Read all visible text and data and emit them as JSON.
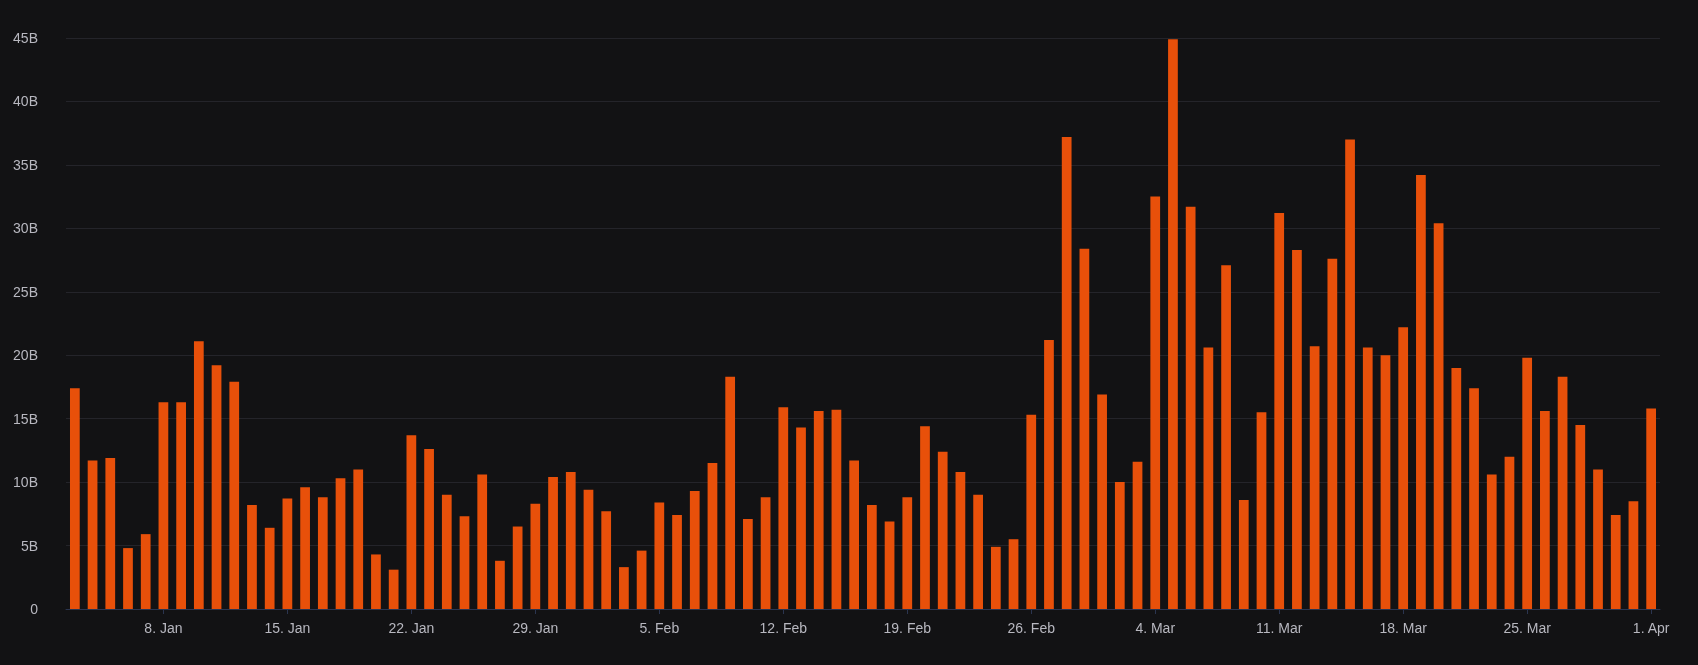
{
  "chart_data": {
    "type": "bar",
    "categories": [
      null,
      null,
      null,
      null,
      null,
      "8. Jan",
      null,
      null,
      null,
      null,
      null,
      null,
      "15. Jan",
      null,
      null,
      null,
      null,
      null,
      null,
      "22. Jan",
      null,
      null,
      null,
      null,
      null,
      null,
      "29. Jan",
      null,
      null,
      null,
      null,
      null,
      null,
      "5. Feb",
      null,
      null,
      null,
      null,
      null,
      null,
      "12. Feb",
      null,
      null,
      null,
      null,
      null,
      null,
      "19. Feb",
      null,
      null,
      null,
      null,
      null,
      null,
      "26. Feb",
      null,
      null,
      null,
      null,
      null,
      null,
      "4. Mar",
      null,
      null,
      null,
      null,
      null,
      null,
      "11. Mar",
      null,
      null,
      null,
      null,
      null,
      null,
      "18. Mar",
      null,
      null,
      null,
      null,
      null,
      null,
      "25. Mar",
      null,
      null,
      null,
      null,
      null,
      null,
      "1. Apr"
    ],
    "values": [
      17.4,
      11.7,
      11.9,
      4.8,
      5.9,
      16.3,
      16.3,
      21.1,
      19.2,
      17.9,
      8.2,
      6.4,
      8.7,
      9.6,
      8.8,
      10.3,
      11.0,
      4.3,
      3.1,
      13.7,
      12.6,
      9.0,
      7.3,
      10.6,
      3.8,
      6.5,
      8.3,
      10.4,
      10.8,
      9.4,
      7.7,
      3.3,
      4.6,
      8.4,
      7.4,
      9.3,
      11.5,
      18.3,
      7.1,
      8.8,
      15.9,
      14.3,
      15.6,
      15.7,
      11.7,
      8.2,
      6.9,
      8.8,
      14.4,
      12.4,
      10.8,
      9.0,
      4.9,
      5.5,
      15.3,
      21.2,
      37.2,
      28.4,
      16.9,
      10.0,
      11.6,
      32.5,
      44.9,
      31.7,
      20.6,
      27.1,
      8.6,
      15.5,
      31.2,
      28.3,
      20.7,
      27.6,
      37.0,
      20.6,
      20.0,
      22.2,
      34.2,
      30.4,
      19.0,
      17.4,
      10.6,
      12.0,
      19.8,
      15.6,
      18.3,
      14.5,
      11.0,
      7.4,
      8.5,
      15.8
    ],
    "color": "#e8500a",
    "ylim": [
      0,
      45
    ],
    "yticks": [
      0,
      {
        "value": 5,
        "label": "5B"
      },
      {
        "value": 10,
        "label": "10B"
      },
      {
        "value": 15,
        "label": "15B"
      },
      {
        "value": 20,
        "label": "20B"
      },
      {
        "value": 25,
        "label": "25B"
      },
      {
        "value": 30,
        "label": "30B"
      },
      {
        "value": 35,
        "label": "35B"
      },
      {
        "value": 40,
        "label": "40B"
      },
      {
        "value": 45,
        "label": "45B"
      }
    ],
    "grid": "y"
  }
}
